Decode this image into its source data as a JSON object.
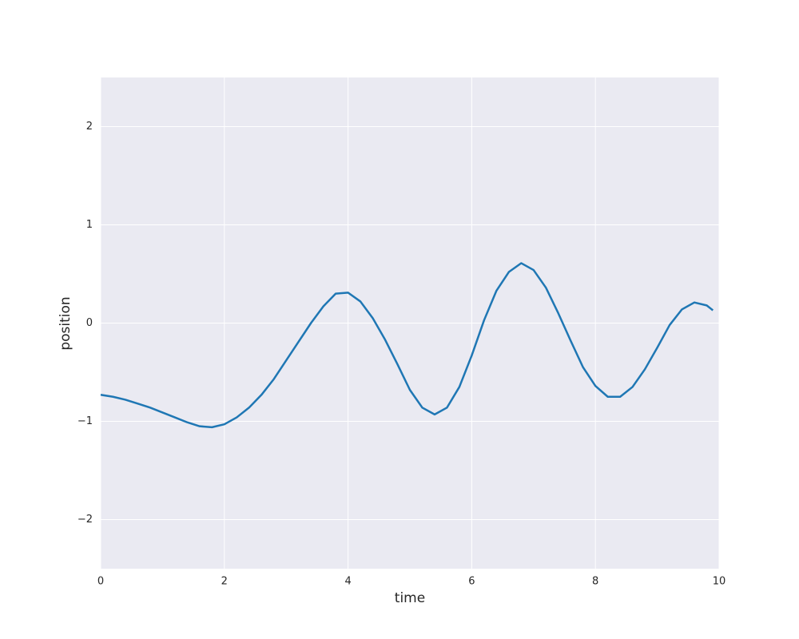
{
  "chart_data": {
    "type": "line",
    "x_label": "time",
    "y_label": "position",
    "x": [
      0,
      0.2,
      0.4,
      0.6,
      0.8,
      1.0,
      1.2,
      1.4,
      1.6,
      1.8,
      2.0,
      2.2,
      2.4,
      2.6,
      2.8,
      3.0,
      3.2,
      3.4,
      3.6,
      3.8,
      4.0,
      4.2,
      4.4,
      4.6,
      4.8,
      5.0,
      5.2,
      5.4,
      5.6,
      5.8,
      6.0,
      6.2,
      6.4,
      6.6,
      6.8,
      7.0,
      7.2,
      7.4,
      7.6,
      7.8,
      8.0,
      8.2,
      8.4,
      8.6,
      8.8,
      9.0,
      9.2,
      9.4,
      9.6,
      9.8,
      9.9
    ],
    "series": [
      {
        "color": "#1f77b4",
        "values": [
          -0.73,
          -0.75,
          -0.78,
          -0.82,
          -0.86,
          -0.91,
          -0.96,
          -1.01,
          -1.05,
          -1.06,
          -1.03,
          -0.96,
          -0.86,
          -0.73,
          -0.57,
          -0.38,
          -0.19,
          0.0,
          0.17,
          0.3,
          0.31,
          0.22,
          0.05,
          -0.17,
          -0.42,
          -0.68,
          -0.86,
          -0.93,
          -0.86,
          -0.65,
          -0.33,
          0.03,
          0.33,
          0.52,
          0.61,
          0.54,
          0.36,
          0.1,
          -0.18,
          -0.45,
          -0.64,
          -0.75,
          -0.75,
          -0.65,
          -0.47,
          -0.25,
          -0.02,
          0.14,
          0.21,
          0.18,
          0.13
        ]
      }
    ],
    "xlim": [
      0,
      10
    ],
    "ylim": [
      -2.5,
      2.5
    ],
    "xticks": [
      0,
      2,
      4,
      6,
      8,
      10
    ],
    "yticks": [
      {
        "value": -2,
        "label": "−2"
      },
      {
        "value": -1,
        "label": "−1"
      },
      0,
      1,
      2
    ],
    "grid": true,
    "background": "#eaeaf2"
  }
}
